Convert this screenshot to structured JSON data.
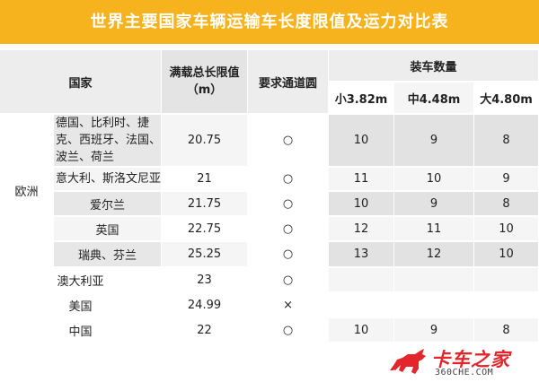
{
  "title": "世界主要国家车辆运输车长度限值及运力对比表",
  "headers": {
    "country": "国家",
    "length_limit": "满载总长限值（m）",
    "circle": "要求通道圆",
    "capacity": "装车数量",
    "small": "小3.82m",
    "medium": "中4.48m",
    "large": "大4.80m"
  },
  "region_europe": "欧洲",
  "rows": [
    {
      "country": "德国、比利时、捷克、西班牙、法国、波兰、荷兰",
      "limit": "20.75",
      "circle": "○",
      "small": "10",
      "medium": "9",
      "large": "8"
    },
    {
      "country": "意大利、斯洛文尼亚",
      "limit": "21",
      "circle": "○",
      "small": "11",
      "medium": "10",
      "large": "9"
    },
    {
      "country": "爱尔兰",
      "limit": "21.75",
      "circle": "○",
      "small": "10",
      "medium": "9",
      "large": "8"
    },
    {
      "country": "英国",
      "limit": "22.75",
      "circle": "○",
      "small": "12",
      "medium": "11",
      "large": "10"
    },
    {
      "country": "瑞典、芬兰",
      "limit": "25.25",
      "circle": "○",
      "small": "13",
      "medium": "12",
      "large": "10"
    },
    {
      "country": "澳大利亚",
      "limit": "23",
      "circle": "○",
      "small": "",
      "medium": "",
      "large": ""
    },
    {
      "country": "美国",
      "limit": "24.99",
      "circle": "×",
      "small": "",
      "medium": "",
      "large": ""
    },
    {
      "country": "中国",
      "limit": "22",
      "circle": "○",
      "small": "10",
      "medium": "9",
      "large": "8"
    }
  ],
  "logo": {
    "name": "卡车之家",
    "domain": "360CHE.COM",
    "color": "#e4252c"
  },
  "colors": {
    "title_bg": "#f6b31e",
    "title_text": "#ffffff"
  }
}
